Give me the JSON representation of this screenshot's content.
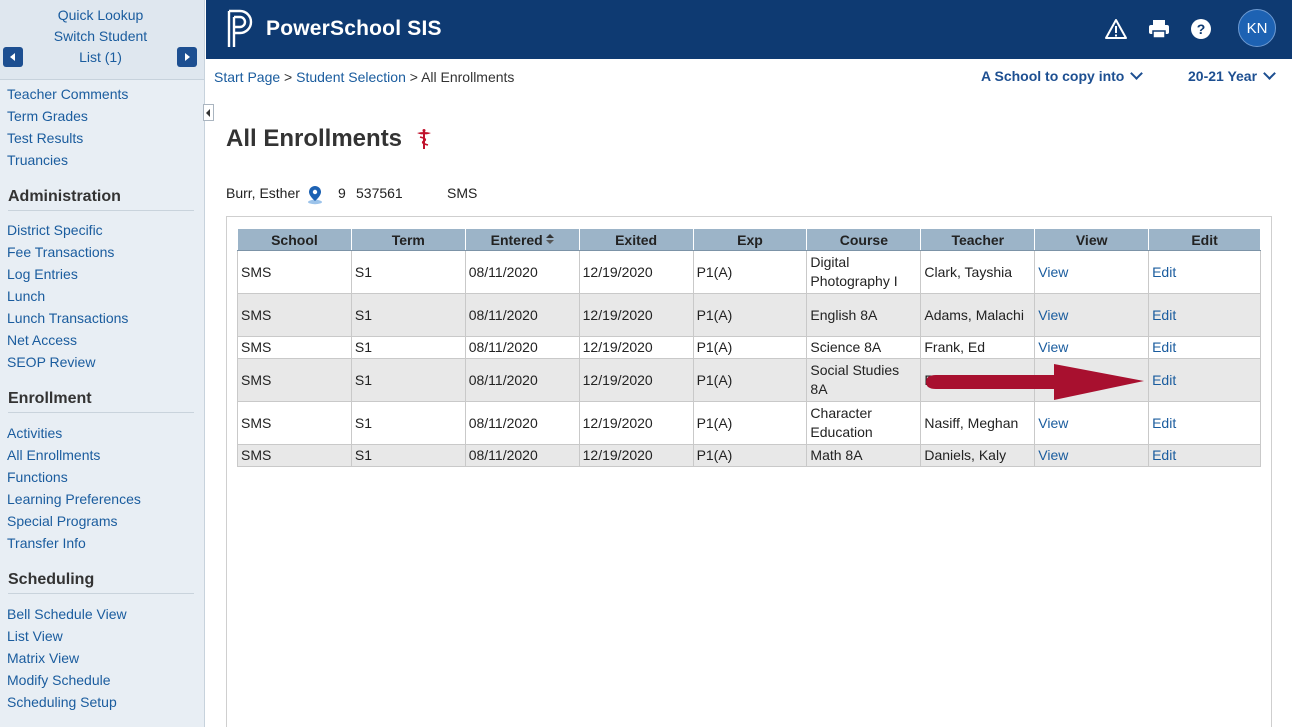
{
  "sidebar": {
    "quick_lookup": "Quick Lookup",
    "switch_student": "Switch Student",
    "list_label": "List (1)",
    "top_items": [
      "Teacher Comments",
      "Term Grades",
      "Test Results",
      "Truancies"
    ],
    "admin_heading": "Administration",
    "admin_items": [
      "District Specific",
      "Fee Transactions",
      "Log Entries",
      "Lunch",
      "Lunch Transactions",
      "Net Access",
      "SEOP Review"
    ],
    "enroll_heading": "Enrollment",
    "enroll_items": [
      "Activities",
      "All Enrollments",
      "Functions",
      "Learning Preferences",
      "Special Programs",
      "Transfer Info"
    ],
    "sched_heading": "Scheduling",
    "sched_items": [
      "Bell Schedule View",
      "List View",
      "Matrix View",
      "Modify Schedule",
      "Scheduling Setup"
    ]
  },
  "header": {
    "title": "PowerSchool SIS",
    "avatar_initials": "KN",
    "icons": [
      "alert-icon",
      "print-icon",
      "help-icon"
    ]
  },
  "breadcrumb": {
    "start": "Start Page",
    "sep1": " > ",
    "selection": "Student Selection",
    "sep2": " > ",
    "current": "All Enrollments"
  },
  "school_select": "A School to copy into",
  "year_select": "20-21 Year",
  "page_title": "All Enrollments",
  "student": {
    "name": "Burr, Esther",
    "grade": "9",
    "id": "537561",
    "school": "SMS"
  },
  "table": {
    "headers": [
      "School",
      "Term",
      "Entered",
      "Exited",
      "Exp",
      "Course",
      "Teacher",
      "View",
      "Edit"
    ],
    "rows": [
      {
        "school": "SMS",
        "term": "S1",
        "entered": "08/11/2020",
        "exited": "12/19/2020",
        "exp": "P1(A)",
        "course": "Digital Photography I",
        "teacher": "Clark, Tayshia",
        "view": "View",
        "edit": "Edit"
      },
      {
        "school": "SMS",
        "term": "S1",
        "entered": "08/11/2020",
        "exited": "12/19/2020",
        "exp": "P1(A)",
        "course": "English 8A",
        "teacher": "Adams, Malachi",
        "view": "View",
        "edit": "Edit"
      },
      {
        "school": "SMS",
        "term": "S1",
        "entered": "08/11/2020",
        "exited": "12/19/2020",
        "exp": "P1(A)",
        "course": "Science 8A",
        "teacher": "Frank, Ed",
        "view": "View",
        "edit": "Edit"
      },
      {
        "school": "SMS",
        "term": "S1",
        "entered": "08/11/2020",
        "exited": "12/19/2020",
        "exp": "P1(A)",
        "course": "Social Studies 8A",
        "teacher": "Frank,",
        "view": "",
        "edit": "Edit"
      },
      {
        "school": "SMS",
        "term": "S1",
        "entered": "08/11/2020",
        "exited": "12/19/2020",
        "exp": "P1(A)",
        "course": "Character Education",
        "teacher": "Nasiff, Meghan",
        "view": "View",
        "edit": "Edit"
      },
      {
        "school": "SMS",
        "term": "S1",
        "entered": "08/11/2020",
        "exited": "12/19/2020",
        "exp": "P1(A)",
        "course": "Math 8A",
        "teacher": "Daniels, Kaly",
        "view": "View",
        "edit": "Edit"
      }
    ]
  },
  "colors": {
    "header_bg": "#0e3a72",
    "table_header_bg": "#9cb4c8",
    "link": "#1a5c9e",
    "annotation_arrow": "#a8102f"
  }
}
